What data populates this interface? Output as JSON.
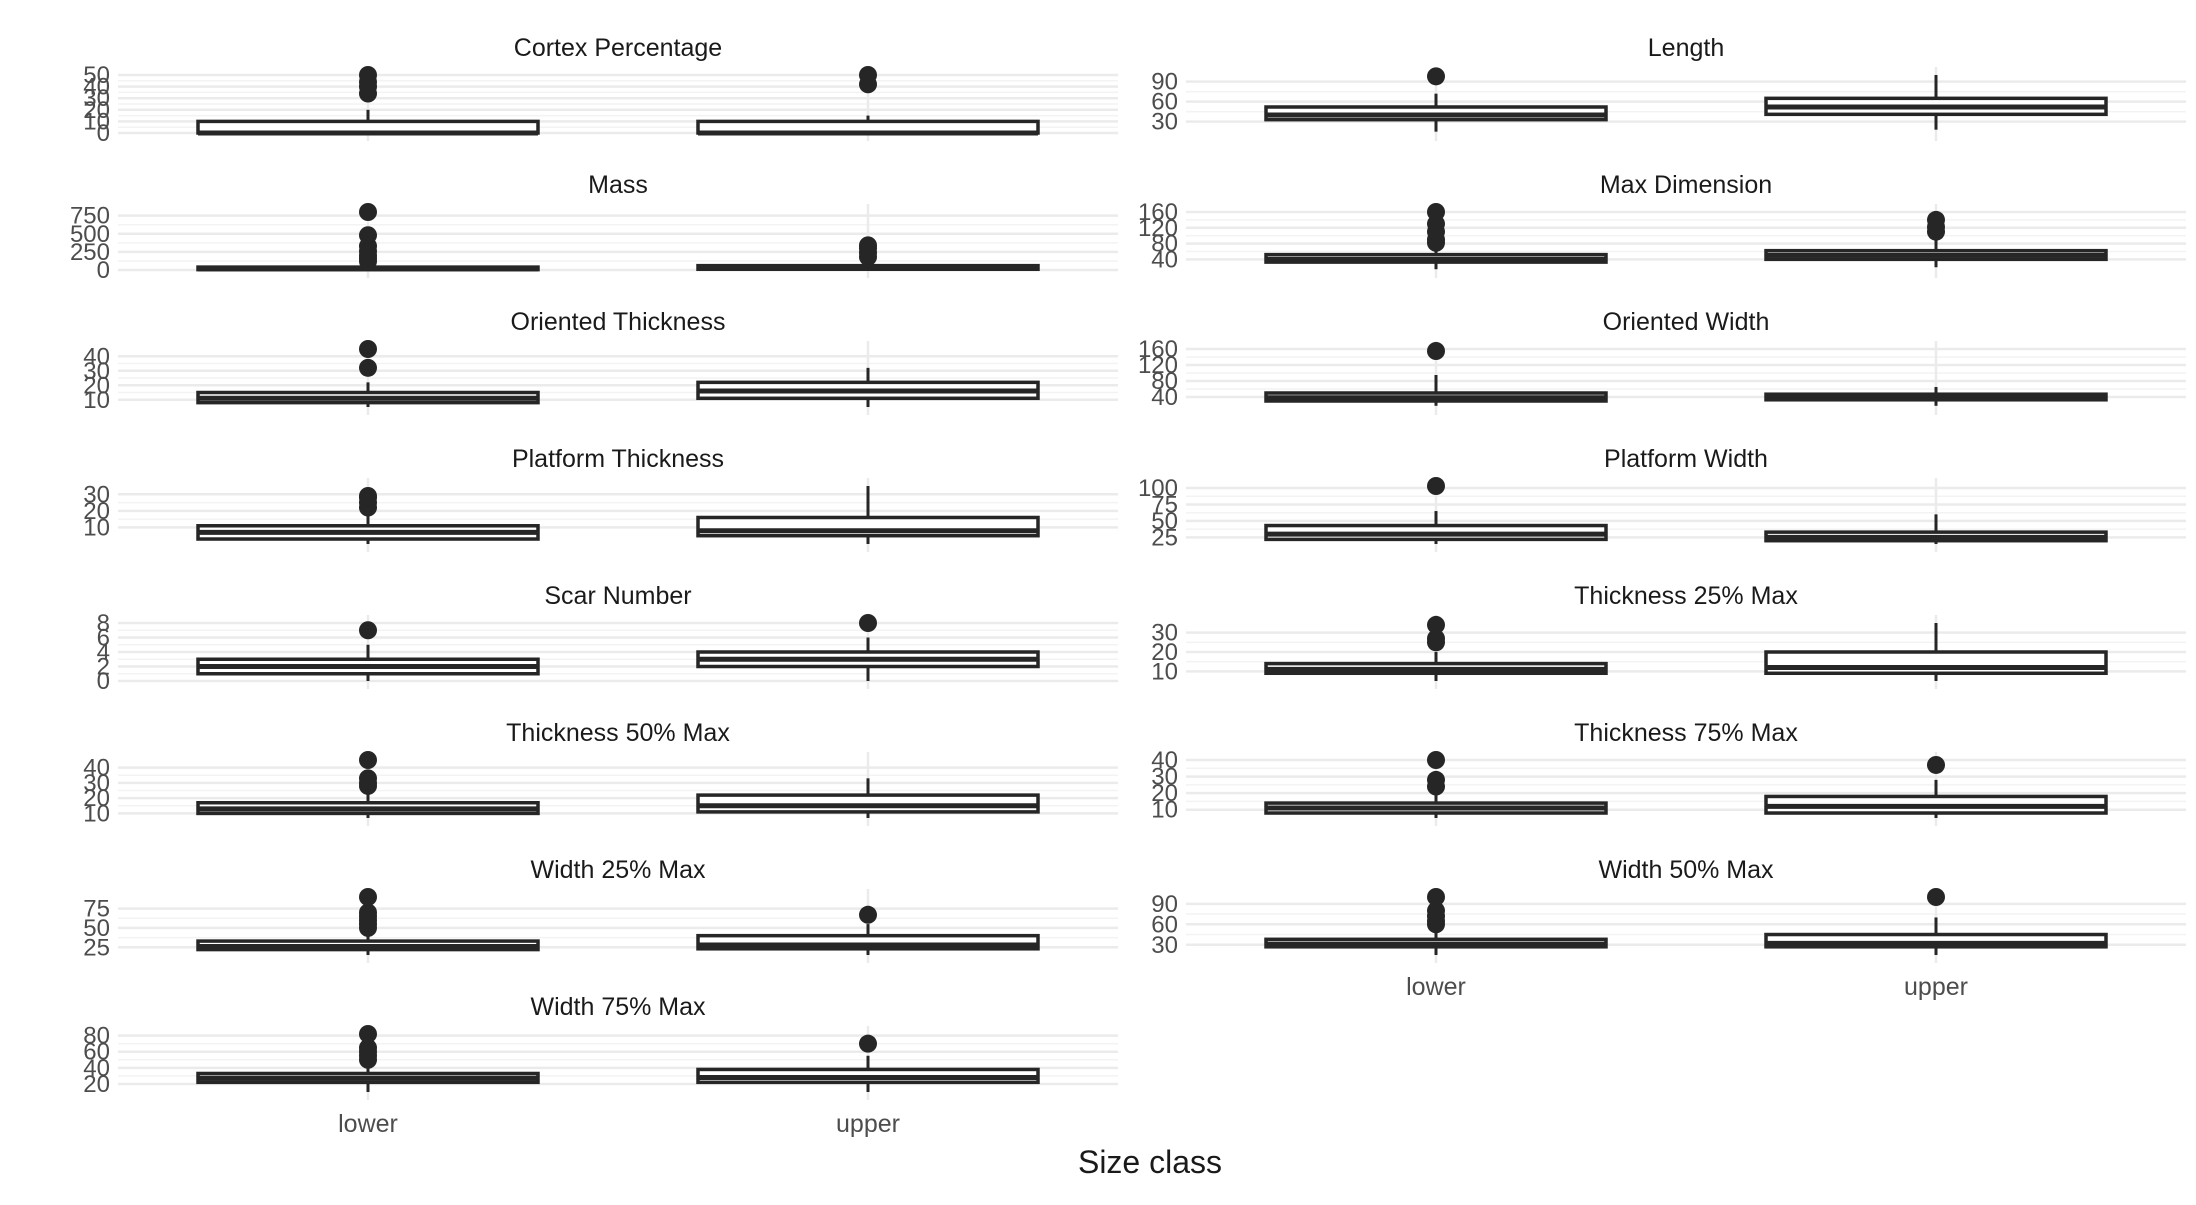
{
  "chart_data": {
    "type": "boxplot",
    "xlabel": "Size class",
    "categories": [
      "lower",
      "upper"
    ],
    "grid": true,
    "colors": {
      "box_line": "#262626",
      "grid": "#ebebeb",
      "text": "#4d4d4d",
      "title": "#1a1a1a"
    },
    "panels": [
      {
        "title": "Cortex Percentage",
        "ylim": [
          0,
          50
        ],
        "yticks": [
          0,
          10,
          20,
          30,
          40,
          50
        ],
        "ytick_labels": [
          "0",
          "10",
          "20",
          "30",
          "40",
          "50"
        ],
        "boxes": [
          {
            "category": "lower",
            "min": 0,
            "q1": 0,
            "median": 0,
            "q3": 10,
            "max": 20,
            "outliers": [
              34,
              40,
              44,
              50
            ]
          },
          {
            "category": "upper",
            "min": 0,
            "q1": 0,
            "median": 0,
            "q3": 10,
            "max": 15,
            "outliers": [
              42,
              50
            ]
          }
        ]
      },
      {
        "title": "Length",
        "ylim": [
          13,
          100
        ],
        "yticks": [
          30,
          60,
          90
        ],
        "ytick_labels": [
          "30",
          "60",
          "90"
        ],
        "boxes": [
          {
            "category": "lower",
            "min": 15,
            "q1": 33,
            "median": 40,
            "q3": 52,
            "max": 72,
            "outliers": [
              98
            ]
          },
          {
            "category": "upper",
            "min": 18,
            "q1": 41,
            "median": 52,
            "q3": 65,
            "max": 100,
            "outliers": []
          }
        ]
      },
      {
        "title": "Mass",
        "ylim": [
          0,
          800
        ],
        "yticks": [
          0,
          250,
          500,
          750
        ],
        "ytick_labels": [
          "0",
          "250",
          "500",
          "750"
        ],
        "boxes": [
          {
            "category": "lower",
            "min": 0,
            "q1": 5,
            "median": 15,
            "q3": 40,
            "max": 90,
            "outliers": [
              120,
              160,
              200,
              260,
              330,
              480,
              800
            ]
          },
          {
            "category": "upper",
            "min": 0,
            "q1": 10,
            "median": 25,
            "q3": 60,
            "max": 130,
            "outliers": [
              180,
              240,
              300,
              340
            ]
          }
        ]
      },
      {
        "title": "Max Dimension",
        "ylim": [
          13,
          160
        ],
        "yticks": [
          40,
          80,
          120,
          160
        ],
        "ytick_labels": [
          "40",
          "80",
          "120",
          "160"
        ],
        "boxes": [
          {
            "category": "lower",
            "min": 15,
            "q1": 33,
            "median": 40,
            "q3": 52,
            "max": 75,
            "outliers": [
              82,
              90,
              110,
              130,
              160
            ]
          },
          {
            "category": "upper",
            "min": 20,
            "q1": 40,
            "median": 50,
            "q3": 62,
            "max": 90,
            "outliers": [
              110,
              122,
              140
            ]
          }
        ]
      },
      {
        "title": "Oriented Thickness",
        "ylim": [
          5,
          45
        ],
        "yticks": [
          10,
          20,
          30,
          40
        ],
        "ytick_labels": [
          "10",
          "20",
          "30",
          "40"
        ],
        "boxes": [
          {
            "category": "lower",
            "min": 5,
            "q1": 8,
            "median": 11,
            "q3": 15,
            "max": 22,
            "outliers": [
              32,
              45
            ]
          },
          {
            "category": "upper",
            "min": 5,
            "q1": 11,
            "median": 16,
            "q3": 22,
            "max": 32,
            "outliers": []
          }
        ]
      },
      {
        "title": "Oriented Width",
        "ylim": [
          15,
          160
        ],
        "yticks": [
          40,
          80,
          120,
          160
        ],
        "ytick_labels": [
          "40",
          "80",
          "120",
          "160"
        ],
        "boxes": [
          {
            "category": "lower",
            "min": 18,
            "q1": 30,
            "median": 38,
            "q3": 50,
            "max": 95,
            "outliers": [
              155
            ]
          },
          {
            "category": "upper",
            "min": 18,
            "q1": 33,
            "median": 40,
            "q3": 47,
            "max": 65,
            "outliers": []
          }
        ]
      },
      {
        "title": "Platform Thickness",
        "ylim": [
          0,
          35
        ],
        "yticks": [
          10,
          20,
          30
        ],
        "ytick_labels": [
          "10",
          "20",
          "30"
        ],
        "boxes": [
          {
            "category": "lower",
            "min": 0,
            "q1": 3,
            "median": 7,
            "q3": 11,
            "max": 18,
            "outliers": [
              22,
              25,
              28,
              29
            ]
          },
          {
            "category": "upper",
            "min": 0,
            "q1": 5,
            "median": 8,
            "q3": 16,
            "max": 35,
            "outliers": []
          }
        ]
      },
      {
        "title": "Platform Width",
        "ylim": [
          15,
          103
        ],
        "yticks": [
          25,
          50,
          75,
          100
        ],
        "ytick_labels": [
          "25",
          "50",
          "75",
          "100"
        ],
        "boxes": [
          {
            "category": "lower",
            "min": 15,
            "q1": 22,
            "median": 30,
            "q3": 43,
            "max": 65,
            "outliers": [
              103
            ]
          },
          {
            "category": "upper",
            "min": 15,
            "q1": 20,
            "median": 25,
            "q3": 33,
            "max": 60,
            "outliers": []
          }
        ]
      },
      {
        "title": "Scar Number",
        "ylim": [
          0,
          8
        ],
        "yticks": [
          0,
          2,
          4,
          6,
          8
        ],
        "ytick_labels": [
          "0",
          "2",
          "4",
          "6",
          "8"
        ],
        "boxes": [
          {
            "category": "lower",
            "min": 0,
            "q1": 1,
            "median": 2,
            "q3": 3,
            "max": 5,
            "outliers": [
              7
            ]
          },
          {
            "category": "upper",
            "min": 0,
            "q1": 2,
            "median": 3,
            "q3": 4,
            "max": 6,
            "outliers": [
              8
            ]
          }
        ]
      },
      {
        "title": "Thickness 25% Max",
        "ylim": [
          5,
          35
        ],
        "yticks": [
          10,
          20,
          30
        ],
        "ytick_labels": [
          "10",
          "20",
          "30"
        ],
        "boxes": [
          {
            "category": "lower",
            "min": 5,
            "q1": 9,
            "median": 11,
            "q3": 14,
            "max": 20,
            "outliers": [
              25,
              27,
              34
            ]
          },
          {
            "category": "upper",
            "min": 5,
            "q1": 9,
            "median": 12,
            "q3": 20,
            "max": 35,
            "outliers": []
          }
        ]
      },
      {
        "title": "Thickness 50% Max",
        "ylim": [
          7,
          45
        ],
        "yticks": [
          10,
          20,
          30,
          40
        ],
        "ytick_labels": [
          "10",
          "20",
          "30",
          "40"
        ],
        "boxes": [
          {
            "category": "lower",
            "min": 7,
            "q1": 10,
            "median": 13,
            "q3": 17,
            "max": 24,
            "outliers": [
              28,
              30,
              33,
              45
            ]
          },
          {
            "category": "upper",
            "min": 7,
            "q1": 11,
            "median": 15,
            "q3": 22,
            "max": 33,
            "outliers": []
          }
        ]
      },
      {
        "title": "Thickness 75% Max",
        "ylim": [
          5,
          40
        ],
        "yticks": [
          10,
          20,
          30,
          40
        ],
        "ytick_labels": [
          "10",
          "20",
          "30",
          "40"
        ],
        "boxes": [
          {
            "category": "lower",
            "min": 5,
            "q1": 8,
            "median": 11,
            "q3": 14,
            "max": 20,
            "outliers": [
              24,
              28,
              40
            ]
          },
          {
            "category": "upper",
            "min": 5,
            "q1": 8,
            "median": 12,
            "q3": 18,
            "max": 28,
            "outliers": [
              37
            ]
          }
        ]
      },
      {
        "title": "Width 25% Max",
        "ylim": [
          15,
          90
        ],
        "yticks": [
          25,
          50,
          75
        ],
        "ytick_labels": [
          "25",
          "50",
          "75"
        ],
        "boxes": [
          {
            "category": "lower",
            "min": 15,
            "q1": 22,
            "median": 26,
            "q3": 33,
            "max": 45,
            "outliers": [
              50,
              55,
              60,
              65,
              70,
              90
            ]
          },
          {
            "category": "upper",
            "min": 15,
            "q1": 23,
            "median": 28,
            "q3": 40,
            "max": 55,
            "outliers": [
              67
            ]
          }
        ]
      },
      {
        "title": "Width 50% Max",
        "ylim": [
          15,
          100
        ],
        "yticks": [
          30,
          60,
          90
        ],
        "ytick_labels": [
          "30",
          "60",
          "90"
        ],
        "boxes": [
          {
            "category": "lower",
            "min": 15,
            "q1": 27,
            "median": 31,
            "q3": 38,
            "max": 55,
            "outliers": [
              60,
              65,
              72,
              80,
              100
            ]
          },
          {
            "category": "upper",
            "min": 15,
            "q1": 27,
            "median": 32,
            "q3": 45,
            "max": 70,
            "outliers": [
              100
            ]
          }
        ]
      },
      {
        "title": "Width 75% Max",
        "ylim": [
          10,
          82
        ],
        "yticks": [
          20,
          40,
          60,
          80
        ],
        "ytick_labels": [
          "20",
          "40",
          "60",
          "80"
        ],
        "boxes": [
          {
            "category": "lower",
            "min": 10,
            "q1": 22,
            "median": 27,
            "q3": 33,
            "max": 45,
            "outliers": [
              50,
              55,
              60,
              65,
              82
            ]
          },
          {
            "category": "upper",
            "min": 10,
            "q1": 22,
            "median": 28,
            "q3": 38,
            "max": 55,
            "outliers": [
              70
            ]
          }
        ]
      }
    ]
  }
}
